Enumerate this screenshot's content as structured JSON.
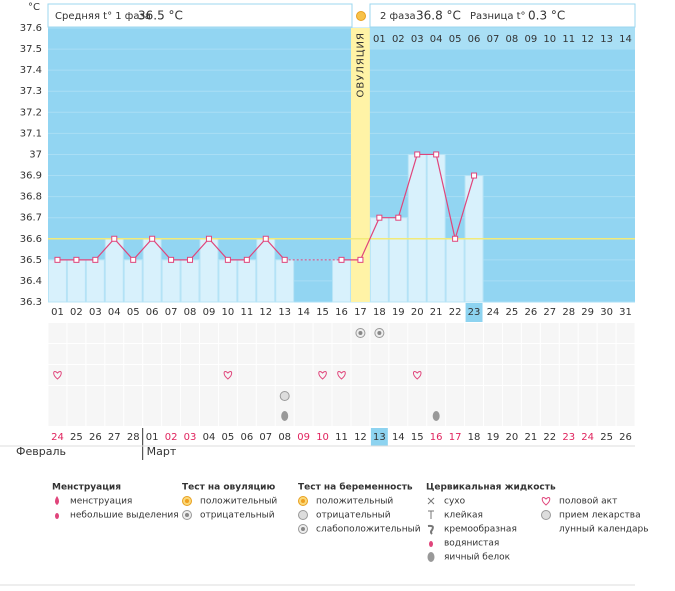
{
  "chart_data": {
    "type": "line",
    "y_unit": "°C",
    "header": {
      "phase1_label": "Средняя t° 1 фаза",
      "phase1_value": "36.5 °C",
      "phase2_label": "2 фаза",
      "phase2_value": "36.8 °C",
      "diff_label": "Разница t°",
      "diff_value": "0.3 °C"
    },
    "ovulation_label": "ОВУЛЯЦИЯ",
    "ovulation_index": 16,
    "highlight_index": 22,
    "coverline": 36.6,
    "phase2_start_index": 17,
    "phase2_days": [
      "01",
      "02",
      "03",
      "04",
      "05",
      "06",
      "07",
      "08",
      "09",
      "10",
      "11",
      "12",
      "13",
      "14"
    ],
    "categories": [
      "01",
      "02",
      "03",
      "04",
      "05",
      "06",
      "07",
      "08",
      "09",
      "10",
      "11",
      "12",
      "13",
      "14",
      "15",
      "16",
      "17",
      "18",
      "19",
      "20",
      "21",
      "22",
      "23",
      "24",
      "25",
      "26",
      "27",
      "28",
      "29",
      "30",
      "31"
    ],
    "values": [
      36.5,
      36.5,
      36.5,
      36.6,
      36.5,
      36.6,
      36.5,
      36.5,
      36.6,
      36.5,
      36.5,
      36.6,
      36.5,
      null,
      null,
      36.5,
      36.5,
      36.7,
      36.7,
      37.0,
      37.0,
      36.6,
      36.9,
      null,
      null,
      null,
      null,
      null,
      null,
      null,
      null
    ],
    "color": "#e0457b",
    "ylim": [
      36.3,
      37.6
    ],
    "yticks": [
      36.3,
      36.4,
      36.5,
      36.6,
      36.7,
      36.8,
      36.9,
      {
        "value": 37.0,
        "label": "37"
      },
      37.1,
      37.2,
      37.3,
      37.4,
      37.5,
      37.6
    ],
    "dates": [
      "24",
      "25",
      "26",
      "27",
      "28",
      "01",
      "02",
      "03",
      "04",
      "05",
      "06",
      "07",
      "08",
      "09",
      "10",
      "11",
      "12",
      "13",
      "14",
      "15",
      "16",
      "17",
      "18",
      "19",
      "20",
      "21",
      "22",
      "23",
      "24",
      "25",
      "26"
    ],
    "date_colors": [
      "#e0245e",
      "#333",
      "#333",
      "#333",
      "#333",
      "#333",
      "#e0245e",
      "#e0245e",
      "#333",
      "#333",
      "#333",
      "#333",
      "#333",
      "#e0245e",
      "#e0245e",
      "#333",
      "#333",
      "#333",
      "#333",
      "#333",
      "#e0245e",
      "#e0245e",
      "#333",
      "#333",
      "#333",
      "#333",
      "#333",
      "#e0245e",
      "#e0245e",
      "#333",
      "#333"
    ],
    "months": [
      "Февраль",
      "Март"
    ],
    "legend": [
      {
        "title": "Менструация",
        "items": [
          "менструация",
          "небольшие выделения"
        ]
      },
      {
        "title": "Тест на овуляцию",
        "items": [
          "положительный",
          "отрицательный"
        ]
      },
      {
        "title": "Тест на беременность",
        "items": [
          "положительный",
          "отрицательный",
          "слабоположительный"
        ]
      },
      {
        "title": "Цервикальная жидкость",
        "items": [
          "сухо",
          "клейкая",
          "кремообразная",
          "водянистая",
          "яичный белок"
        ]
      },
      {
        "items": [
          "половой акт",
          "прием лекарства",
          "лунный календарь"
        ]
      }
    ]
  }
}
